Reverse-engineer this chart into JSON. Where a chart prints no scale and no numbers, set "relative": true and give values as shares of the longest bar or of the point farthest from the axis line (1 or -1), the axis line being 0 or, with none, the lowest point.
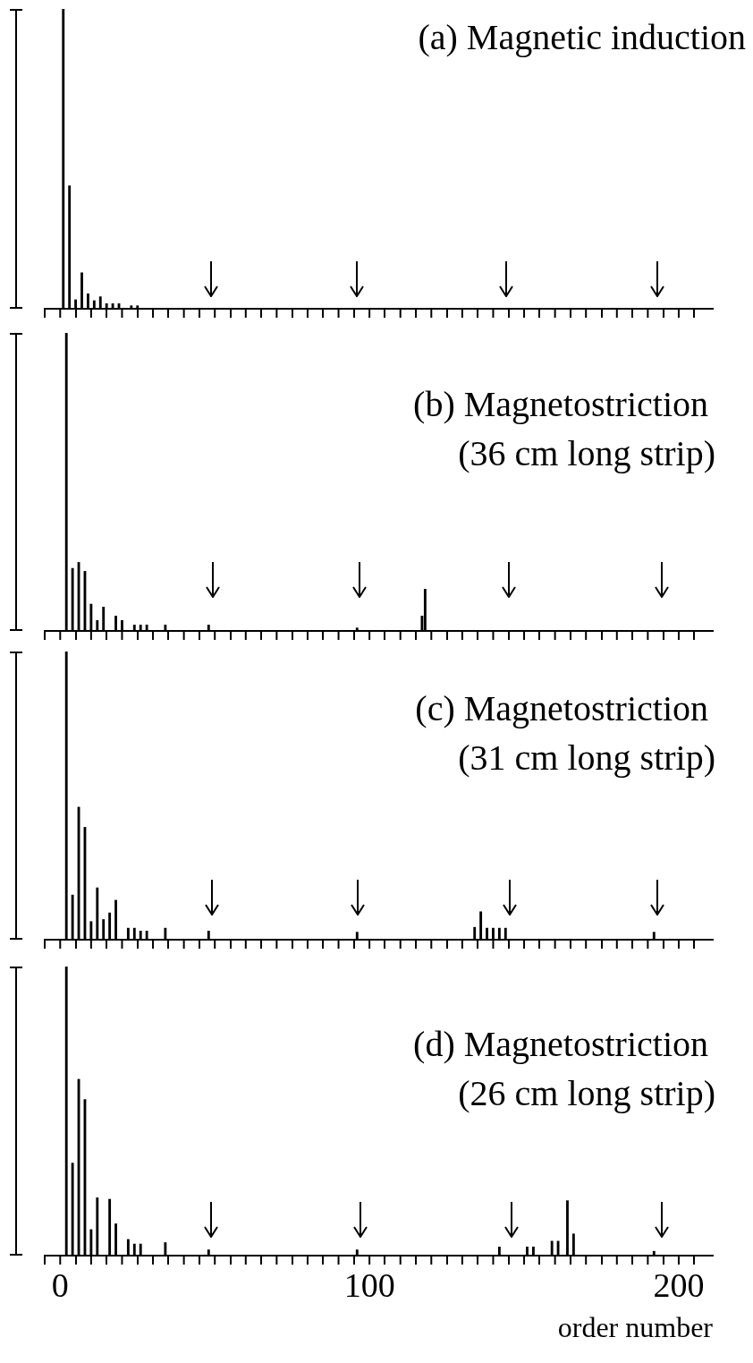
{
  "chart_data": [
    {
      "type": "bar",
      "title": "(a) Magnetic induction",
      "relative": true,
      "tick_labels": false,
      "xlim": [
        -5,
        211
      ],
      "xticks": [
        0,
        {
          "value": 10,
          "label": null
        },
        {
          "value": 20,
          "label": null
        },
        {
          "value": 30,
          "label": null
        },
        {
          "value": 40,
          "label": null
        },
        {
          "value": 50,
          "label": null
        },
        {
          "value": 60,
          "label": null
        },
        {
          "value": 70,
          "label": null
        },
        {
          "value": 80,
          "label": null
        },
        {
          "value": 90,
          "label": null
        },
        100,
        {
          "value": 110,
          "label": null
        },
        {
          "value": 120,
          "label": null
        },
        {
          "value": 130,
          "label": null
        },
        {
          "value": 140,
          "label": null
        },
        {
          "value": 150,
          "label": null
        },
        {
          "value": 160,
          "label": null
        },
        {
          "value": 170,
          "label": null
        },
        {
          "value": 180,
          "label": null
        },
        {
          "value": 190,
          "label": null
        },
        200
      ],
      "series": [
        {
          "color": "#000000",
          "x": [
            1,
            3,
            5,
            7,
            9,
            11,
            13,
            15,
            17,
            19,
            23,
            25
          ],
          "values": [
            1,
            0.41,
            0.03,
            0.12,
            0.05,
            0.027,
            0.04,
            0.017,
            0.017,
            0.017,
            0.01,
            0.01
          ]
        }
      ]
    },
    {
      "type": "bar",
      "title": "(b) Magnetostriction",
      "subtitle": "(36 cm long strip)",
      "relative": true,
      "tick_labels": false,
      "xlim": [
        -5,
        211
      ],
      "xticks": [
        0,
        {
          "value": 10,
          "label": null
        },
        {
          "value": 20,
          "label": null
        },
        {
          "value": 30,
          "label": null
        },
        {
          "value": 40,
          "label": null
        },
        {
          "value": 50,
          "label": null
        },
        {
          "value": 60,
          "label": null
        },
        {
          "value": 70,
          "label": null
        },
        {
          "value": 80,
          "label": null
        },
        {
          "value": 90,
          "label": null
        },
        100,
        {
          "value": 110,
          "label": null
        },
        {
          "value": 120,
          "label": null
        },
        {
          "value": 130,
          "label": null
        },
        {
          "value": 140,
          "label": null
        },
        {
          "value": 150,
          "label": null
        },
        {
          "value": 160,
          "label": null
        },
        {
          "value": 170,
          "label": null
        },
        {
          "value": 180,
          "label": null
        },
        {
          "value": 190,
          "label": null
        },
        200
      ],
      "series": [
        {
          "color": "#000000",
          "x": [
            2,
            4,
            6,
            8,
            10,
            12,
            14,
            18,
            20,
            24,
            26,
            28,
            34,
            48,
            96,
            117,
            118
          ],
          "values": [
            1,
            0.21,
            0.23,
            0.2,
            0.09,
            0.035,
            0.08,
            0.05,
            0.035,
            0.02,
            0.02,
            0.02,
            0.02,
            0.02,
            0.01,
            0.05,
            0.14
          ]
        }
      ]
    },
    {
      "type": "bar",
      "title": "(c) Magnetostriction",
      "subtitle": "(31 cm long strip)",
      "relative": true,
      "tick_labels": false,
      "xlim": [
        -5,
        211
      ],
      "xticks": [
        0,
        {
          "value": 10,
          "label": null
        },
        {
          "value": 20,
          "label": null
        },
        {
          "value": 30,
          "label": null
        },
        {
          "value": 40,
          "label": null
        },
        {
          "value": 50,
          "label": null
        },
        {
          "value": 60,
          "label": null
        },
        {
          "value": 70,
          "label": null
        },
        {
          "value": 80,
          "label": null
        },
        {
          "value": 90,
          "label": null
        },
        100,
        {
          "value": 110,
          "label": null
        },
        {
          "value": 120,
          "label": null
        },
        {
          "value": 130,
          "label": null
        },
        {
          "value": 140,
          "label": null
        },
        {
          "value": 150,
          "label": null
        },
        {
          "value": 160,
          "label": null
        },
        {
          "value": 170,
          "label": null
        },
        {
          "value": 180,
          "label": null
        },
        {
          "value": 190,
          "label": null
        },
        200
      ],
      "series": [
        {
          "color": "#000000",
          "x": [
            2,
            4,
            6,
            8,
            10,
            12,
            14,
            16,
            18,
            22,
            24,
            26,
            28,
            34,
            48,
            96,
            134,
            136,
            138,
            140,
            142,
            144,
            192
          ],
          "values": [
            1,
            0.155,
            0.46,
            0.39,
            0.063,
            0.18,
            0.07,
            0.093,
            0.137,
            0.04,
            0.04,
            0.03,
            0.03,
            0.04,
            0.03,
            0.026,
            0.043,
            0.097,
            0.04,
            0.04,
            0.04,
            0.04,
            0.026
          ]
        }
      ]
    },
    {
      "type": "bar",
      "title": "(d) Magnetostriction",
      "subtitle": "(26 cm long strip)",
      "xlabel": "order number",
      "relative": true,
      "tick_labels": "x",
      "xlim": [
        -5,
        211
      ],
      "xticks": [
        0,
        {
          "value": 10,
          "label": null
        },
        {
          "value": 20,
          "label": null
        },
        {
          "value": 30,
          "label": null
        },
        {
          "value": 40,
          "label": null
        },
        {
          "value": 50,
          "label": null
        },
        {
          "value": 60,
          "label": null
        },
        {
          "value": 70,
          "label": null
        },
        {
          "value": 80,
          "label": null
        },
        {
          "value": 90,
          "label": null
        },
        100,
        {
          "value": 110,
          "label": null
        },
        {
          "value": 120,
          "label": null
        },
        {
          "value": 130,
          "label": null
        },
        {
          "value": 140,
          "label": null
        },
        {
          "value": 150,
          "label": null
        },
        {
          "value": 160,
          "label": null
        },
        {
          "value": 170,
          "label": null
        },
        {
          "value": 180,
          "label": null
        },
        {
          "value": 190,
          "label": null
        },
        200
      ],
      "series": [
        {
          "color": "#000000",
          "x": [
            2,
            4,
            6,
            8,
            10,
            12,
            16,
            18,
            22,
            24,
            26,
            34,
            48,
            96,
            142,
            151,
            153,
            159,
            161,
            164,
            166,
            192
          ],
          "values": [
            1,
            0.32,
            0.61,
            0.54,
            0.09,
            0.2,
            0.195,
            0.11,
            0.056,
            0.04,
            0.04,
            0.045,
            0.02,
            0.02,
            0.03,
            0.03,
            0.03,
            0.05,
            0.05,
            0.19,
            0.075,
            0.015
          ]
        }
      ]
    }
  ]
}
